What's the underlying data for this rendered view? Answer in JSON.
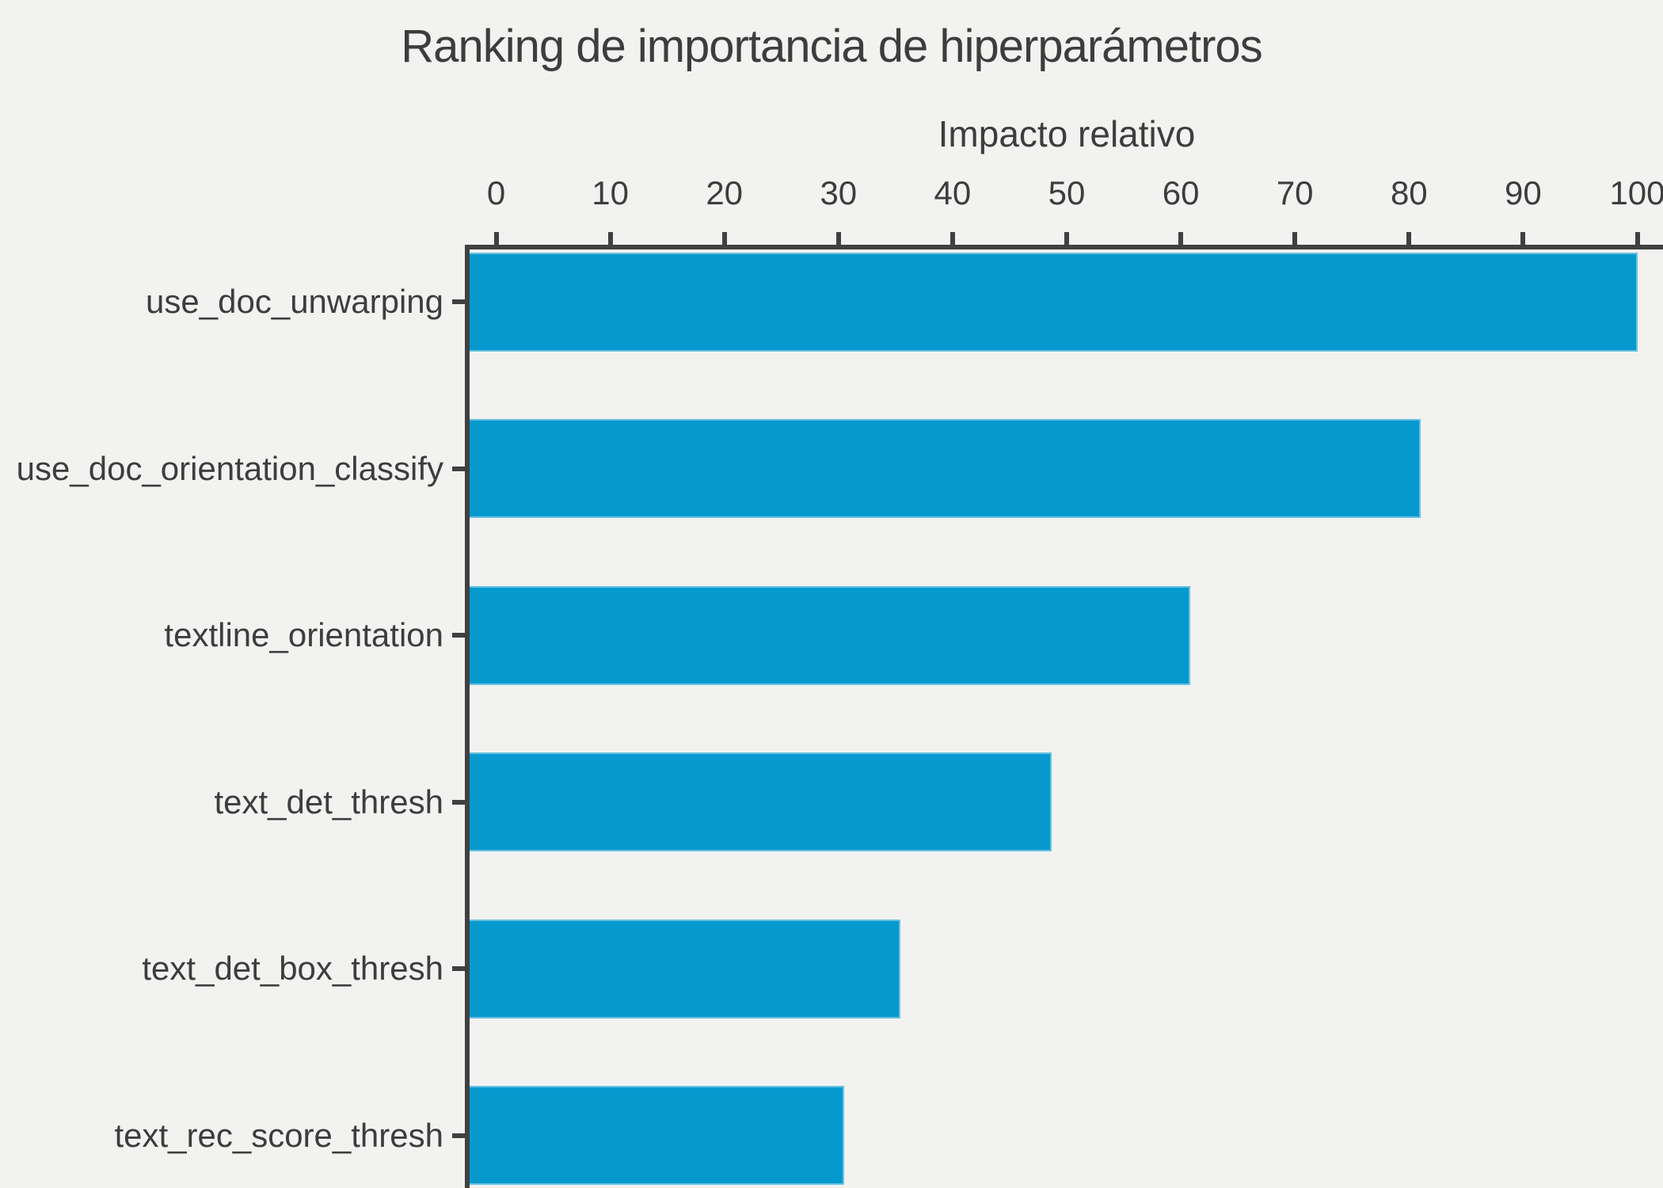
{
  "chart_data": {
    "type": "bar",
    "orientation": "horizontal",
    "title": "Ranking de importancia de hiperparámetros",
    "xlabel": "Impacto relativo",
    "ylabel": "",
    "categories": [
      "use_doc_unwarping",
      "use_doc_orientation_classify",
      "textline_orientation",
      "text_det_thresh",
      "text_det_box_thresh",
      "text_rec_score_thresh"
    ],
    "values": [
      100,
      81,
      60.8,
      48.7,
      35.4,
      30.5
    ],
    "xlim": [
      0,
      100
    ],
    "x_ticks": [
      0,
      10,
      20,
      30,
      40,
      50,
      60,
      70,
      80,
      90,
      100
    ],
    "x_axis_position": "top",
    "grid": false,
    "legend": null,
    "colors": {
      "bar": "#0599ce",
      "background": "#f2f2f1",
      "text": "#3d3d3d",
      "axis": "#404040"
    }
  }
}
